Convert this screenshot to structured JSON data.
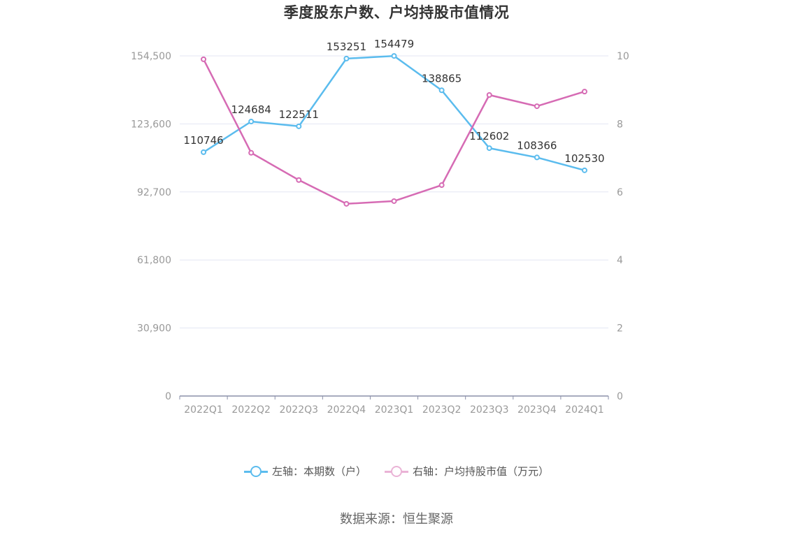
{
  "chart_data": {
    "type": "line",
    "title": "季度股东户数、户均持股市值情况",
    "categories": [
      "2022Q1",
      "2022Q2",
      "2022Q3",
      "2022Q4",
      "2023Q1",
      "2023Q2",
      "2023Q3",
      "2023Q4",
      "2024Q1"
    ],
    "series": [
      {
        "name": "左轴：本期数（户）",
        "axis": "left",
        "color": "#5bbcee",
        "values": [
          110746,
          124684,
          122511,
          153251,
          154479,
          138865,
          112602,
          108366,
          102530
        ],
        "show_labels": true
      },
      {
        "name": "右轴：户均持股市值（万元）",
        "axis": "right",
        "color": "#d66bb4",
        "legend_color": "#eab3d6",
        "values": [
          9.9,
          7.15,
          6.35,
          5.65,
          5.73,
          6.2,
          8.85,
          8.52,
          8.95
        ],
        "show_labels": false
      }
    ],
    "y_left": {
      "ylim": [
        0,
        154500
      ],
      "ticks": [
        "0",
        "30,900",
        "61,800",
        "92,700",
        "123,600",
        "154,500"
      ]
    },
    "y_right": {
      "ylim": [
        0,
        10
      ],
      "ticks": [
        "0",
        "2",
        "4",
        "6",
        "8",
        "10"
      ]
    },
    "grid": true,
    "legend_position": "bottom"
  },
  "footer": {
    "source": "数据来源：恒生聚源"
  }
}
